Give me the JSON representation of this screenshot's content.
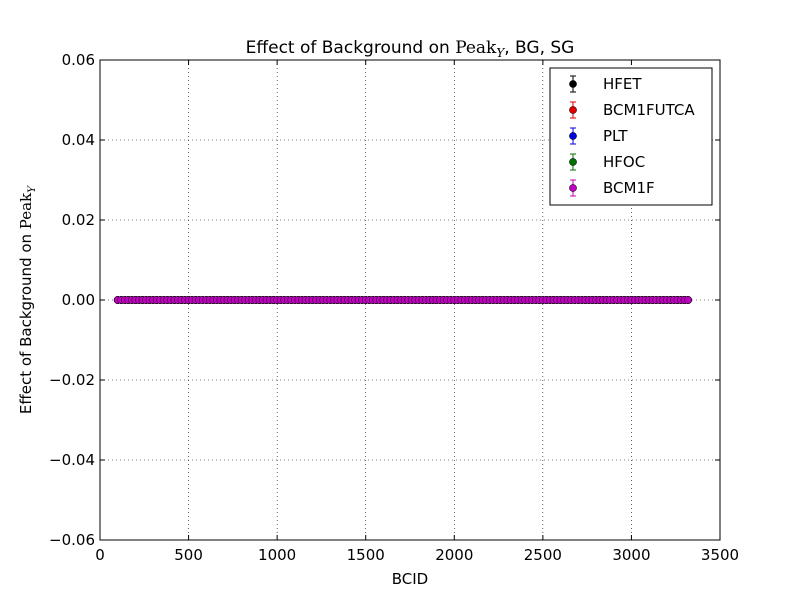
{
  "chart_data": {
    "type": "scatter",
    "title": {
      "prefix": "Effect of Background on ",
      "math_main": "Peak",
      "math_sub": "Y",
      "suffix": ", BG, SG"
    },
    "xlabel": "BCID",
    "ylabel": {
      "prefix": "Effect of Background on ",
      "math_main": "Peak",
      "math_sub": "Y"
    },
    "xlim": [
      0,
      3500
    ],
    "ylim": [
      -0.06,
      0.06
    ],
    "xticks": [
      0,
      500,
      1000,
      1500,
      2000,
      2500,
      3000,
      3500
    ],
    "xtick_labels": [
      "0",
      "500",
      "1000",
      "1500",
      "2000",
      "2500",
      "3000",
      "3500"
    ],
    "yticks": [
      -0.06,
      -0.04,
      -0.02,
      0.0,
      0.02,
      0.04,
      0.06
    ],
    "ytick_labels": [
      "−0.06",
      "−0.04",
      "−0.02",
      "0.00",
      "0.02",
      "0.04",
      "0.06"
    ],
    "grid": true,
    "legend_position": "top-right",
    "bcid_groups": [
      {
        "start": 100,
        "step": 20,
        "count": 45
      },
      {
        "start": 1000,
        "step": 20,
        "count": 45
      },
      {
        "start": 1880,
        "step": 20,
        "count": 45
      },
      {
        "start": 2780,
        "step": 20,
        "count": 28
      }
    ],
    "series": [
      {
        "name": "HFET",
        "color": "#000000",
        "value": 0.0
      },
      {
        "name": "BCM1FUTCA",
        "color": "#e00000",
        "value": 0.0
      },
      {
        "name": "PLT",
        "color": "#0000e0",
        "value": 0.0
      },
      {
        "name": "HFOC",
        "color": "#007000",
        "value": 0.0
      },
      {
        "name": "BCM1F",
        "color": "#c000c0",
        "value": 0.0
      }
    ]
  }
}
